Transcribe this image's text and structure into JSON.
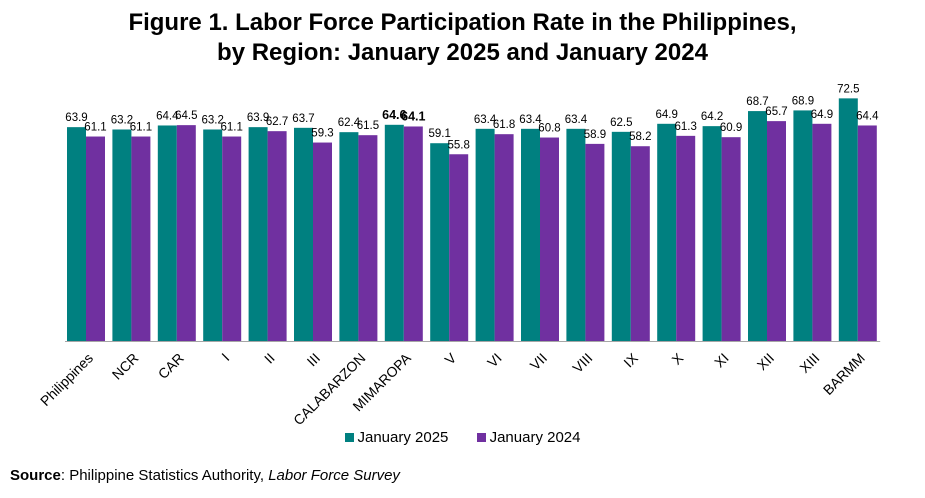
{
  "title": {
    "line1": "Figure 1.  Labor Force Participation Rate in the Philippines,",
    "line2": "by Region: January 2025 and January 2024"
  },
  "chart_data": {
    "type": "bar",
    "categories": [
      "Philippines",
      "NCR",
      "CAR",
      "I",
      "II",
      "III",
      "CALABARZON",
      "MIMAROPA",
      "V",
      "VI",
      "VII",
      "VIII",
      "IX",
      "X",
      "XI",
      "XII",
      "XIII",
      "BARMM"
    ],
    "series": [
      {
        "name": "January 2025",
        "color": "#008080",
        "values": [
          63.9,
          63.2,
          64.4,
          63.2,
          63.9,
          63.7,
          62.4,
          64.6,
          59.1,
          63.4,
          63.4,
          63.4,
          62.5,
          64.9,
          64.2,
          68.7,
          68.9,
          72.5
        ]
      },
      {
        "name": "January 2024",
        "color": "#7030A0",
        "values": [
          61.1,
          61.1,
          64.5,
          61.1,
          62.7,
          59.3,
          61.5,
          64.1,
          55.8,
          61.8,
          60.8,
          58.9,
          58.2,
          61.3,
          60.9,
          65.7,
          64.9,
          64.4
        ]
      }
    ],
    "bold_labels_category": "MIMAROPA",
    "ylim": [
      0,
      75
    ],
    "grid": false,
    "legend": "bottom"
  },
  "source": {
    "label": "Source",
    "text": ": Philippine Statistics Authority, ",
    "publication": "Labor Force Survey"
  }
}
